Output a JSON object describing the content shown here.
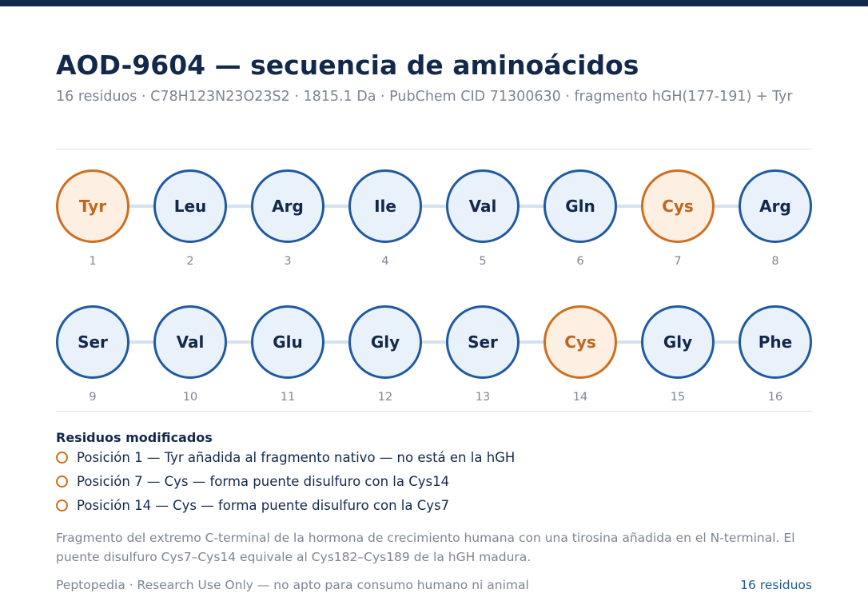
{
  "header": {
    "title": "AOD-9604 — secuencia de aminoácidos",
    "subtitle": "16 residuos · C78H123N23O23S2 · 1815.1 Da · PubChem CID 71300630 · fragmento hGH(177-191) + Tyr"
  },
  "colors": {
    "accent": "#13294b",
    "standard_residue_border": "#1f5aa0",
    "standard_residue_fill": "#e9f1fb",
    "modified_residue_border": "#cf6e1e",
    "modified_residue_fill": "#fdf0e3"
  },
  "sequence": {
    "rows": [
      [
        {
          "code": "Tyr",
          "position": "1",
          "modified": true
        },
        {
          "code": "Leu",
          "position": "2",
          "modified": false
        },
        {
          "code": "Arg",
          "position": "3",
          "modified": false
        },
        {
          "code": "Ile",
          "position": "4",
          "modified": false
        },
        {
          "code": "Val",
          "position": "5",
          "modified": false
        },
        {
          "code": "Gln",
          "position": "6",
          "modified": false
        },
        {
          "code": "Cys",
          "position": "7",
          "modified": true
        },
        {
          "code": "Arg",
          "position": "8",
          "modified": false
        }
      ],
      [
        {
          "code": "Ser",
          "position": "9",
          "modified": false
        },
        {
          "code": "Val",
          "position": "10",
          "modified": false
        },
        {
          "code": "Glu",
          "position": "11",
          "modified": false
        },
        {
          "code": "Gly",
          "position": "12",
          "modified": false
        },
        {
          "code": "Ser",
          "position": "13",
          "modified": false
        },
        {
          "code": "Cys",
          "position": "14",
          "modified": true
        },
        {
          "code": "Gly",
          "position": "15",
          "modified": false
        },
        {
          "code": "Phe",
          "position": "16",
          "modified": false
        }
      ]
    ]
  },
  "modifications": {
    "heading": "Residuos modificados",
    "items": [
      "Posición 1 — Tyr añadida al fragmento nativo — no está en la hGH",
      "Posición 7 — Cys — forma puente disulfuro con la Cys14",
      "Posición 14 — Cys — forma puente disulfuro con la Cys7"
    ]
  },
  "description": "Fragmento del extremo C-terminal de la hormona de crecimiento humana con una tirosina añadida en el N-terminal. El puente disulfuro Cys7–Cys14 equivale al Cys182–Cys189 de la hGH madura.",
  "footer": {
    "source": "Peptopedia · Research Use Only — no apto para consumo humano ni animal",
    "count": "16 residuos"
  }
}
